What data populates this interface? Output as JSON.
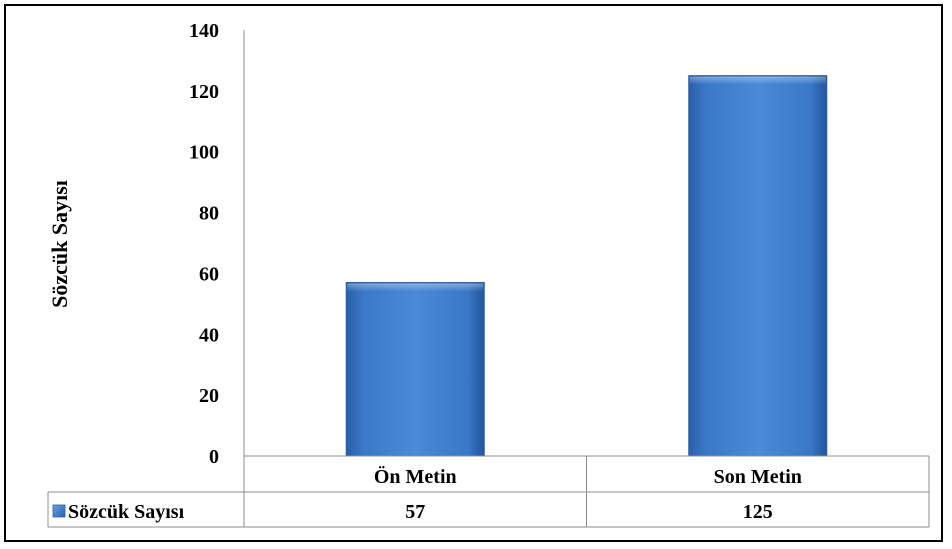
{
  "chart_data": {
    "type": "bar",
    "ylabel": "Sözcük Sayısı",
    "ylim": [
      0,
      140
    ],
    "yticks": [
      0,
      20,
      40,
      60,
      80,
      100,
      120,
      140
    ],
    "categories": [
      "Ön Metin",
      "Son Metin"
    ],
    "series": [
      {
        "name": "Sözcük Sayısı",
        "values": [
          57,
          125
        ],
        "color": "#3E7CC9"
      }
    ],
    "data_table": true,
    "gridlines": false,
    "legend": "data-table-left"
  }
}
